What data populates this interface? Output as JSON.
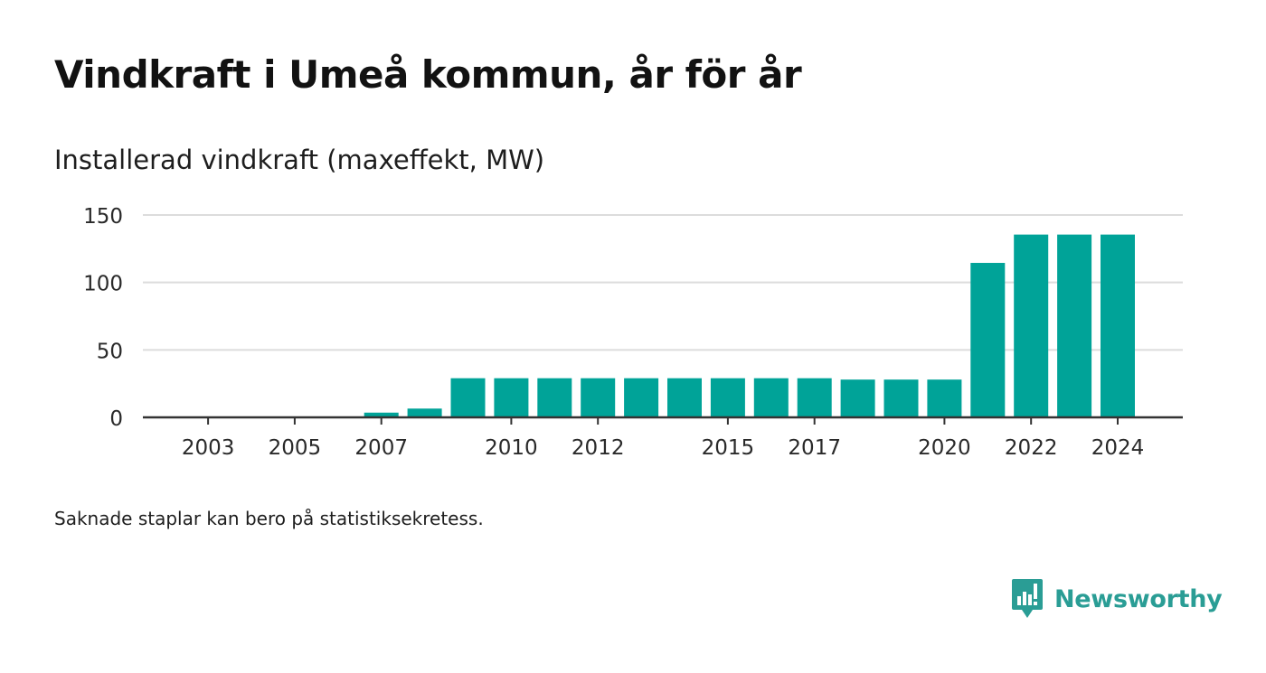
{
  "title": "Vindkraft i Umeå kommun, år för år",
  "subtitle": "Installerad vindkraft (maxeffekt, MW)",
  "note": "Saknade staplar kan bero på statistiksekretess.",
  "brand": {
    "name": "Newsworthy",
    "icon": "newsworthy-logo-icon",
    "color": "#2a9d95"
  },
  "chart_data": {
    "type": "bar",
    "x": [
      2007,
      2008,
      2009,
      2010,
      2011,
      2012,
      2013,
      2014,
      2015,
      2016,
      2017,
      2018,
      2019,
      2020,
      2021,
      2022,
      2023,
      2024
    ],
    "values": [
      3.5,
      6.5,
      29,
      29,
      29,
      29,
      29,
      29,
      29,
      29,
      29,
      28,
      28,
      28,
      114.5,
      135.5,
      135.5,
      135.5
    ],
    "xlim": [
      2002,
      2025
    ],
    "ylim": [
      0,
      150
    ],
    "y_ticks": [
      0,
      50,
      100,
      150
    ],
    "x_ticks": [
      2003,
      2005,
      2007,
      2010,
      2012,
      2015,
      2017,
      2020,
      2022,
      2024
    ],
    "xlabel": "",
    "ylabel": "",
    "grid": true,
    "legend": "none",
    "bar_color": "#00a398",
    "gridline_color": "#dcdcdc",
    "axis_color": "#333333"
  }
}
